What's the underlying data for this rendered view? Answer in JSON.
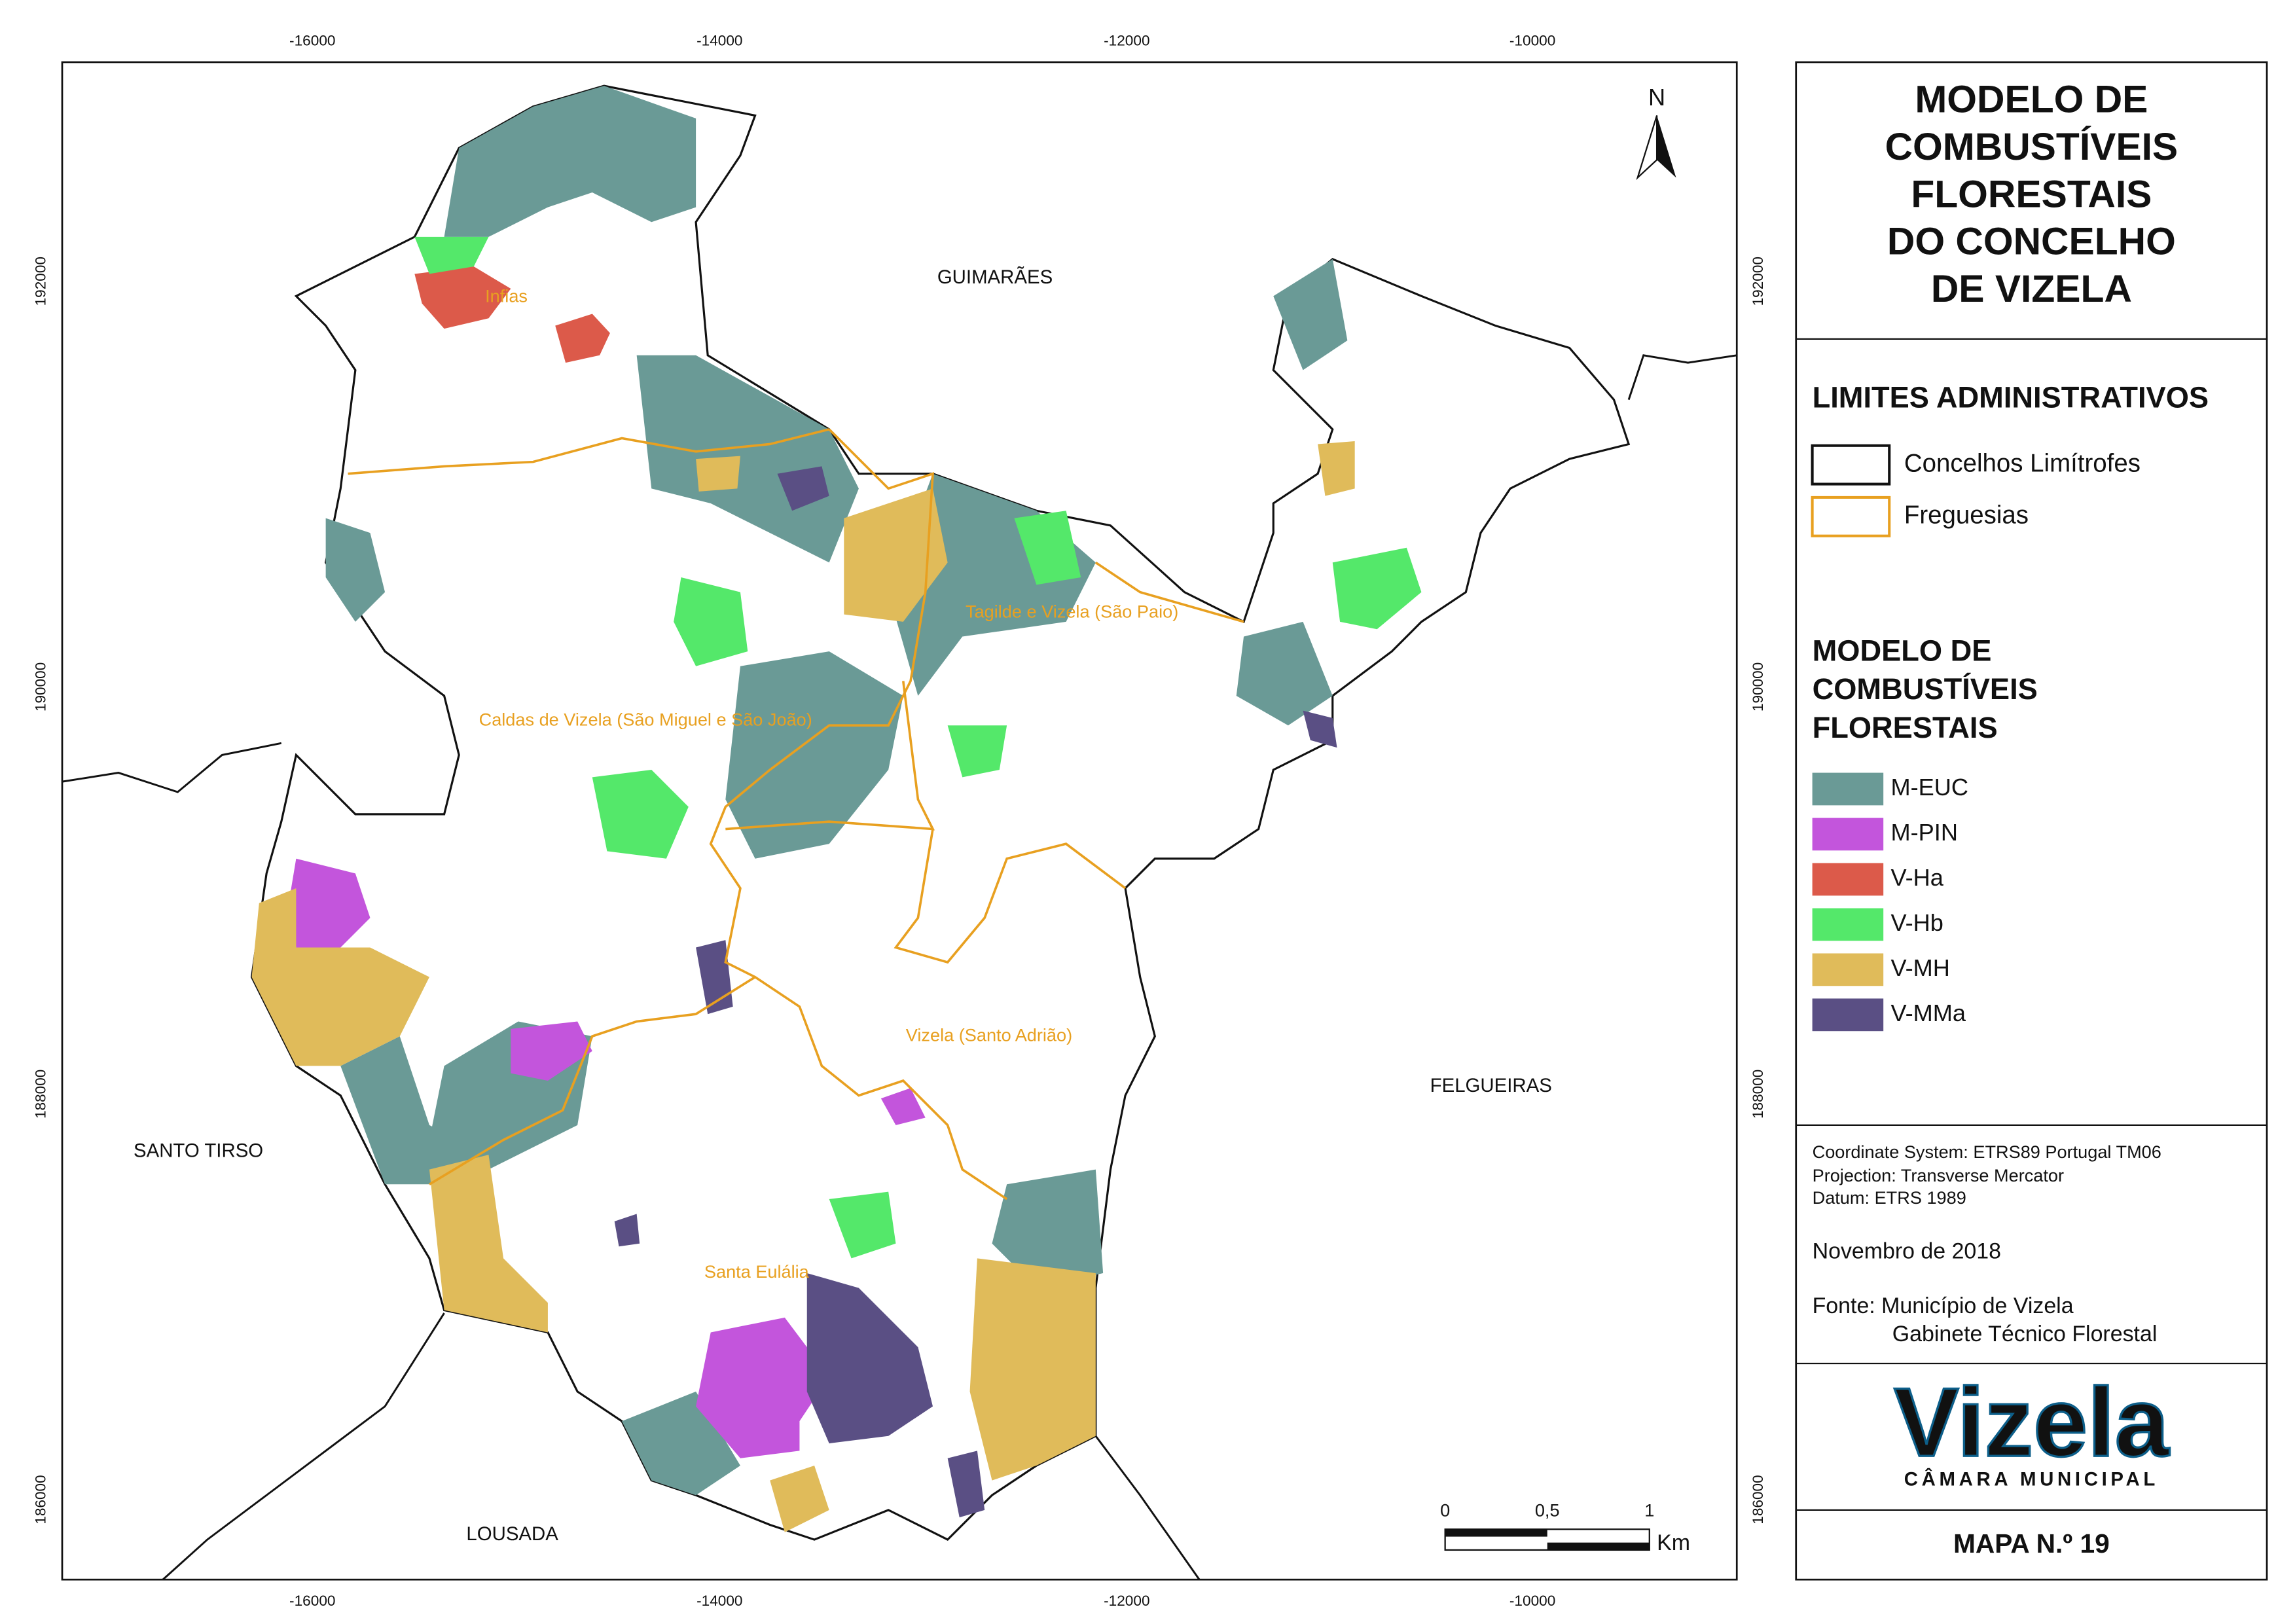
{
  "map": {
    "x_ticks": [
      "-16000",
      "-14000",
      "-12000",
      "-10000"
    ],
    "y_ticks": [
      "192000",
      "190000",
      "188000",
      "186000"
    ],
    "places": [
      "GUIMARÃES",
      "SANTO TIRSO",
      "FELGUEIRAS",
      "LOUSADA"
    ],
    "parishes": [
      "Infias",
      "Tagilde e Vizela (São Paio)",
      "Caldas de Vizela (São Miguel e São João)",
      "Vizela (Santo Adrião)",
      "Santa Eulália"
    ],
    "north": "N",
    "scale_bar": {
      "labels": [
        "0",
        "0,5",
        "1"
      ],
      "unit": "Km"
    }
  },
  "title": [
    "MODELO DE",
    "COMBUSTÍVEIS",
    "FLORESTAIS",
    "DO CONCELHO",
    "DE VIZELA"
  ],
  "legend": {
    "admin_title": "LIMITES ADMINISTRATIVOS",
    "admin_items": [
      {
        "label": "Concelhos Limítrofes",
        "color": "#111111"
      },
      {
        "label": "Freguesias",
        "color": "#e8a020"
      }
    ],
    "fuel_title": [
      "MODELO DE",
      "COMBUSTÍVEIS",
      "FLORESTAIS"
    ],
    "fuel_items": [
      {
        "label": "M-EUC",
        "color": "#6a9a96"
      },
      {
        "label": "M-PIN",
        "color": "#c355dc"
      },
      {
        "label": "V-Ha",
        "color": "#dc5a4a"
      },
      {
        "label": "V-Hb",
        "color": "#54e86a"
      },
      {
        "label": "V-MH",
        "color": "#e0bb5a"
      },
      {
        "label": "V-MMa",
        "color": "#5a4f84"
      }
    ]
  },
  "info": [
    "Coordinate System: ETRS89 Portugal TM06",
    "Projection: Transverse Mercator",
    "Datum: ETRS 1989"
  ],
  "date": "Novembro de 2018",
  "source": [
    "Fonte: Município de Vizela",
    "Gabinete Técnico Florestal"
  ],
  "logo": {
    "name": "Vizela",
    "subtitle": "CÂMARA MUNICIPAL"
  },
  "map_number": "MAPA N.º 19"
}
